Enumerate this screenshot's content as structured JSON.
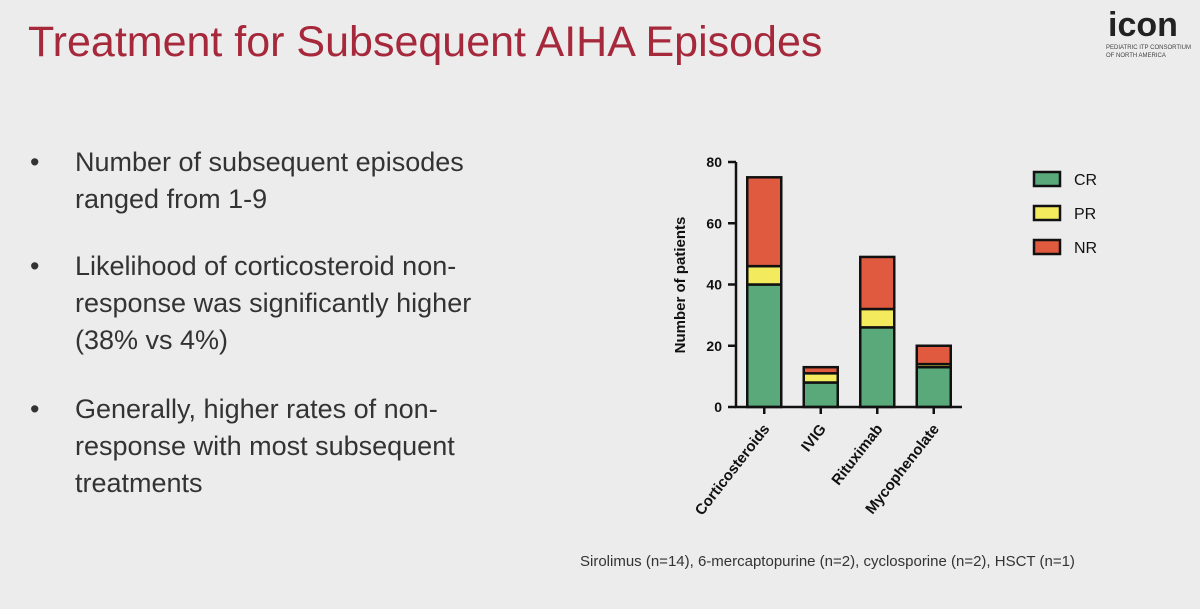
{
  "slide": {
    "title": "Treatment for Subsequent AIHA Episodes",
    "logo": {
      "name": "icon",
      "line1": "PEDIATRIC ITP CONSORTIUM",
      "line2": "OF NORTH AMERICA"
    },
    "bullets": [
      [
        "Number of subsequent episodes",
        "ranged from 1-9"
      ],
      [
        "Likelihood of corticosteroid non-",
        "response was significantly higher",
        "(38% vs 4%)"
      ],
      [
        "Generally, higher rates of non-",
        "response with most subsequent",
        "treatments"
      ]
    ],
    "footnote": "Sirolimus (n=14), 6-mercaptopurine (n=2), cyclosporine (n=2), HSCT (n=1)"
  },
  "chart_data": {
    "type": "stacked_bar",
    "y_label": "Number of patients",
    "categories": [
      "Corticosteroids",
      "IVIG",
      "Rituximab",
      "Mycophenolate"
    ],
    "series": [
      {
        "name": "CR",
        "color": "#5aa97a",
        "values": [
          40,
          8,
          26,
          13
        ]
      },
      {
        "name": "PR",
        "color": "#f3ea5d",
        "values": [
          6,
          3,
          6,
          1
        ]
      },
      {
        "name": "NR",
        "color": "#e05a3f",
        "values": [
          29,
          2,
          17,
          6
        ]
      }
    ],
    "ylim": [
      0,
      80
    ],
    "yticks": [
      0,
      20,
      40,
      60,
      80
    ],
    "legend": "right"
  }
}
